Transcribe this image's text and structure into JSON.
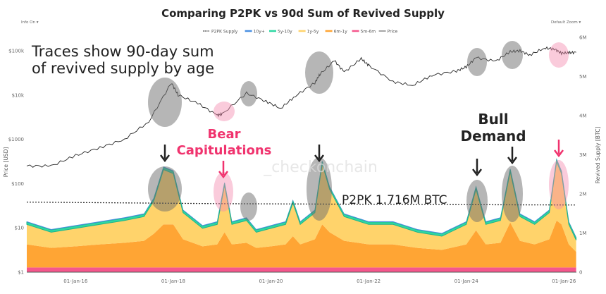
{
  "controls": {
    "info_label": "Info On ▾",
    "zoom_label": "Default Zoom ▾"
  },
  "chart_data": {
    "type": "area",
    "title": "Comparing P2PK vs 90d Sum of Revived Supply",
    "ylabel_left": "Price [USD]",
    "ylabel_right": "Revived Supply [BTC]",
    "left_axis": {
      "scale": "log",
      "range": [
        1,
        200000
      ],
      "ticks": [
        "$1",
        "$10",
        "$100",
        "$1000",
        "$10k",
        "$100k"
      ]
    },
    "right_axis": {
      "range": [
        0,
        6
      ],
      "unit": "M",
      "ticks": [
        "0",
        "1M",
        "2M",
        "3M",
        "4M",
        "5M",
        "6M"
      ]
    },
    "x_ticks": [
      "01-Jan-16",
      "01-Jan-18",
      "01-Jan-20",
      "01-Jan-22",
      "01-Jan-24",
      "01-Jan-26"
    ],
    "x_range": [
      2015.0,
      2026.3
    ],
    "legend": [
      {
        "name": "P2PK Supply",
        "color": "#333333",
        "style": "dotted"
      },
      {
        "name": "10y+",
        "color": "#4a90e2"
      },
      {
        "name": "5y-10y",
        "color": "#2ed8a3"
      },
      {
        "name": "1y-5y",
        "color": "#ffd36b"
      },
      {
        "name": "6m-1y",
        "color": "#ffa534"
      },
      {
        "name": "5m-6m",
        "color": "#f5568c"
      },
      {
        "name": "Price",
        "color": "#222222"
      }
    ],
    "legend_position": "top-center",
    "supply_x": [
      2015.0,
      2015.5,
      2016.0,
      2016.5,
      2017.0,
      2017.4,
      2017.6,
      2017.8,
      2018.0,
      2018.2,
      2018.6,
      2018.9,
      2019.05,
      2019.2,
      2019.5,
      2019.7,
      2020.0,
      2020.3,
      2020.45,
      2020.6,
      2020.9,
      2021.05,
      2021.2,
      2021.5,
      2022.0,
      2022.5,
      2023.0,
      2023.5,
      2024.0,
      2024.2,
      2024.4,
      2024.7,
      2024.9,
      2025.1,
      2025.4,
      2025.7,
      2025.85,
      2025.95,
      2026.1,
      2026.25
    ],
    "series": [
      {
        "name": "5m-6m",
        "values": [
          0.12,
          0.12,
          0.12,
          0.12,
          0.12,
          0.12,
          0.12,
          0.12,
          0.12,
          0.12,
          0.12,
          0.12,
          0.12,
          0.12,
          0.12,
          0.12,
          0.12,
          0.12,
          0.12,
          0.12,
          0.12,
          0.12,
          0.12,
          0.12,
          0.12,
          0.12,
          0.12,
          0.12,
          0.12,
          0.12,
          0.12,
          0.12,
          0.12,
          0.12,
          0.12,
          0.12,
          0.12,
          0.12,
          0.12,
          0.12
        ]
      },
      {
        "name": "6m-1y",
        "values": [
          0.59,
          0.5,
          0.54,
          0.59,
          0.63,
          0.68,
          0.86,
          1.1,
          1.1,
          0.72,
          0.54,
          0.59,
          0.9,
          0.59,
          0.63,
          0.5,
          0.54,
          0.59,
          0.8,
          0.59,
          0.72,
          1.1,
          0.9,
          0.68,
          0.59,
          0.59,
          0.5,
          0.45,
          0.59,
          0.95,
          0.59,
          0.63,
          1.15,
          0.68,
          0.59,
          0.72,
          1.2,
          1.1,
          0.59,
          0.4
        ]
      },
      {
        "name": "1y-5y",
        "values": [
          0.51,
          0.4,
          0.46,
          0.51,
          0.57,
          0.62,
          0.84,
          1.4,
          1.3,
          0.68,
          0.46,
          0.51,
          1.2,
          0.51,
          0.57,
          0.4,
          0.46,
          0.51,
          0.85,
          0.51,
          0.68,
          1.55,
          1.1,
          0.62,
          0.51,
          0.51,
          0.4,
          0.35,
          0.51,
          1.05,
          0.51,
          0.57,
          1.3,
          0.62,
          0.51,
          0.68,
          1.5,
          1.3,
          0.51,
          0.3
        ]
      },
      {
        "name": "5y-10y",
        "values": [
          0.06,
          0.06,
          0.06,
          0.06,
          0.06,
          0.06,
          0.06,
          0.06,
          0.06,
          0.06,
          0.06,
          0.06,
          0.06,
          0.06,
          0.06,
          0.06,
          0.06,
          0.06,
          0.06,
          0.06,
          0.06,
          0.06,
          0.06,
          0.06,
          0.06,
          0.06,
          0.06,
          0.06,
          0.06,
          0.06,
          0.06,
          0.06,
          0.06,
          0.06,
          0.06,
          0.06,
          0.06,
          0.06,
          0.06,
          0.06
        ]
      },
      {
        "name": "10y+",
        "values": [
          0.02,
          0.02,
          0.02,
          0.02,
          0.02,
          0.02,
          0.02,
          0.02,
          0.02,
          0.02,
          0.02,
          0.02,
          0.02,
          0.02,
          0.02,
          0.02,
          0.02,
          0.02,
          0.02,
          0.02,
          0.02,
          0.02,
          0.02,
          0.02,
          0.02,
          0.02,
          0.02,
          0.02,
          0.02,
          0.02,
          0.02,
          0.02,
          0.02,
          0.02,
          0.02,
          0.02,
          0.02,
          0.02,
          0.02,
          0.02
        ]
      }
    ],
    "price": {
      "x": [
        2015.0,
        2015.5,
        2016.0,
        2016.5,
        2017.0,
        2017.5,
        2017.96,
        2018.1,
        2018.5,
        2018.9,
        2019.0,
        2019.5,
        2019.9,
        2020.2,
        2020.5,
        2020.9,
        2021.0,
        2021.3,
        2021.5,
        2021.85,
        2022.0,
        2022.5,
        2022.9,
        2023.3,
        2023.8,
        2024.0,
        2024.2,
        2024.6,
        2024.9,
        2025.1,
        2025.3,
        2025.6,
        2025.8,
        2025.95,
        2026.1,
        2026.25
      ],
      "values": [
        250,
        250,
        430,
        650,
        1000,
        2500,
        19000,
        10000,
        6500,
        3500,
        3700,
        11000,
        7200,
        5000,
        9500,
        19000,
        29000,
        60000,
        33000,
        66000,
        47000,
        20000,
        16500,
        28000,
        35000,
        43000,
        70000,
        58000,
        95000,
        100000,
        80000,
        115000,
        110000,
        88000,
        90000,
        92000
      ]
    },
    "p2pk": {
      "x": [
        2015.0,
        2017.0,
        2019.0,
        2021.0,
        2023.0,
        2025.0,
        2026.25
      ],
      "values": [
        1.79,
        1.77,
        1.75,
        1.74,
        1.73,
        1.72,
        1.716
      ]
    },
    "annotations": {
      "traces_line1": "Traces show 90-day sum",
      "traces_line2": "of revived supply by age",
      "bear_line1": "Bear",
      "bear_line2": "Capitulations",
      "bull_line1": "Bull",
      "bull_line2": "Demand",
      "p2pk_label": "P2PK 1.716M BTC",
      "watermark": "_checkonchain"
    },
    "highlight_colors": {
      "bull": "#8a8a8a",
      "bear": "#f5a3bf",
      "bear_text": "#f0336e"
    }
  }
}
